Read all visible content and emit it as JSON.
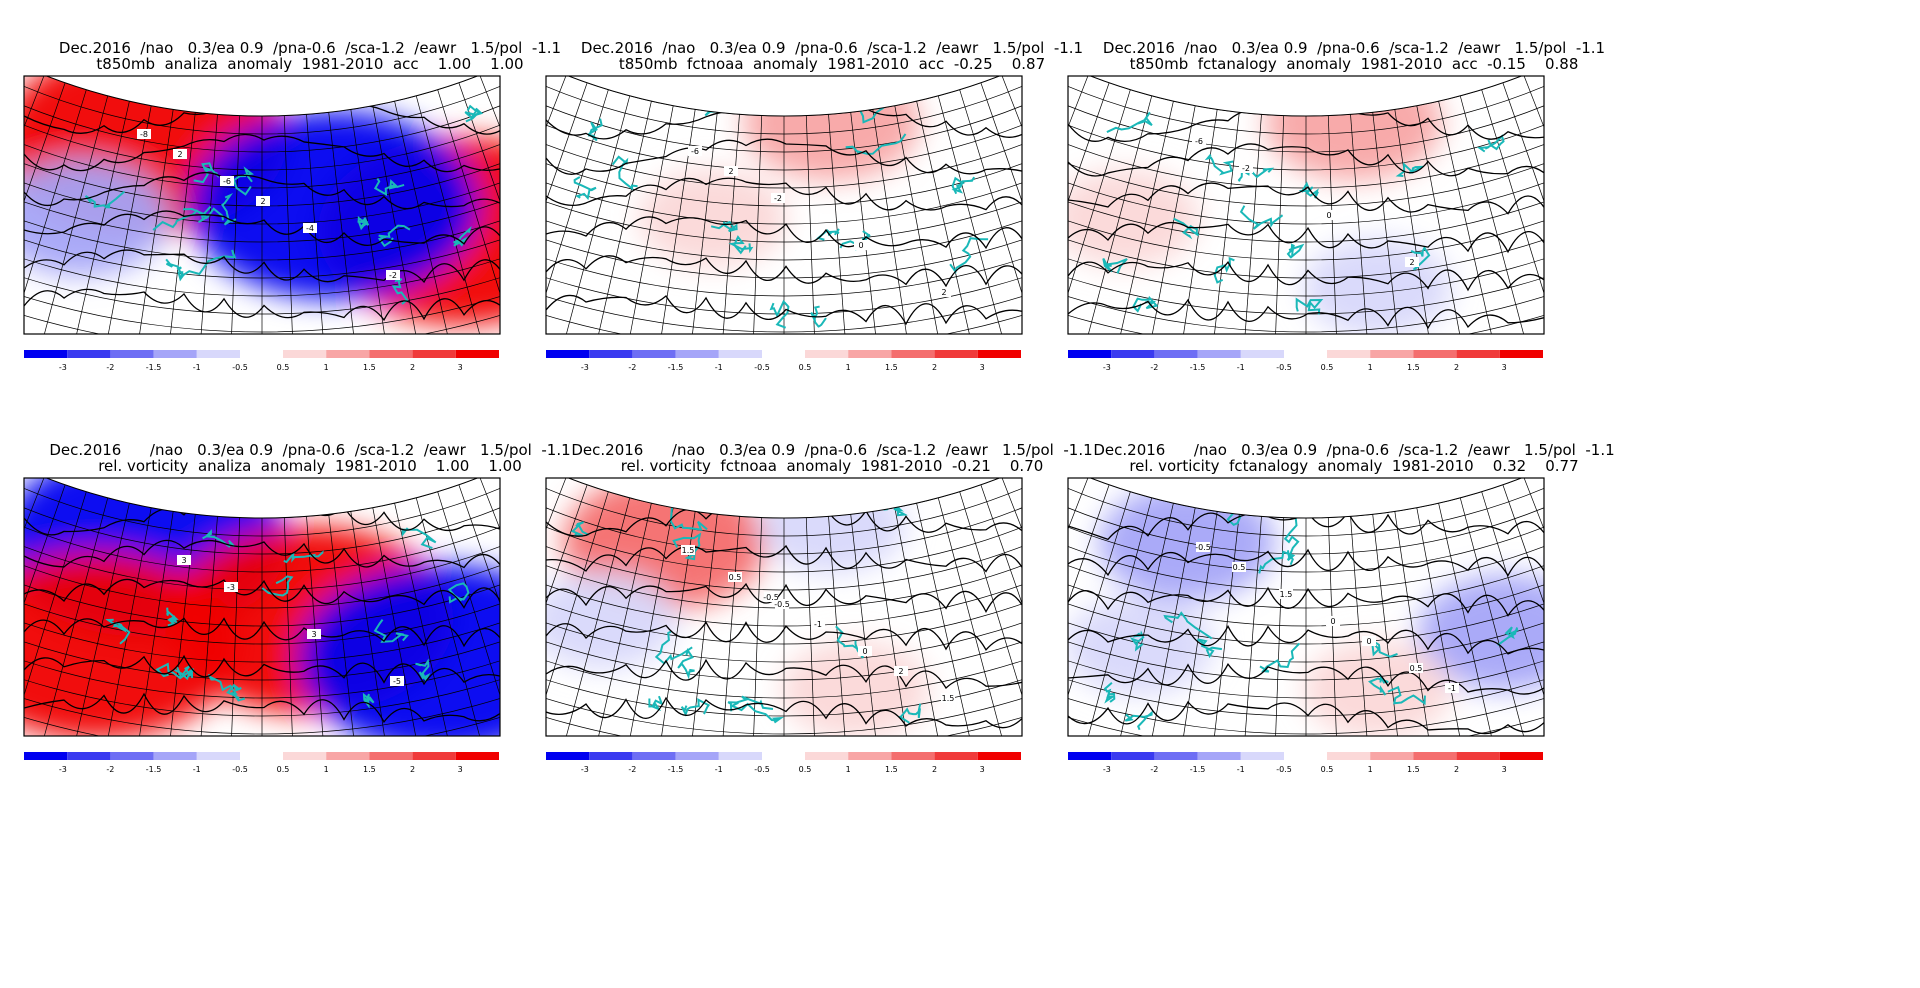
{
  "colors": {
    "negative_strong": "#0000f0",
    "positive_strong": "#f00000",
    "coast": "#1ab8b8",
    "contour": "#000000"
  },
  "colorbar_labels": [
    "-3",
    "-2",
    "-1.5",
    "-1",
    "-0.5",
    "0.5",
    "1",
    "1.5",
    "2",
    "3"
  ],
  "panels": [
    {
      "title_line1": "Dec.2016  /nao   0.3/ea 0.9  /pna-0.6  /sca-1.2  /eawr   1.5/pol  -1.1",
      "title_line2": "t850mb  analiza  anomaly  1981-2010  acc    1.00    1.00"
    },
    {
      "title_line1": "Dec.2016  /nao   0.3/ea 0.9  /pna-0.6  /sca-1.2  /eawr   1.5/pol  -1.1",
      "title_line2": "t850mb  fctnoaa  anomaly  1981-2010  acc  -0.25    0.87"
    },
    {
      "title_line1": "Dec.2016  /nao   0.3/ea 0.9  /pna-0.6  /sca-1.2  /eawr   1.5/pol  -1.1",
      "title_line2": "t850mb  fctanalogy  anomaly  1981-2010  acc  -0.15    0.88"
    },
    {
      "title_line1": "Dec.2016      /nao   0.3/ea 0.9  /pna-0.6  /sca-1.2  /eawr   1.5/pol  -1.1",
      "title_line2": "rel. vorticity  analiza  anomaly  1981-2010    1.00    1.00"
    },
    {
      "title_line1": "Dec.2016      /nao   0.3/ea 0.9  /pna-0.6  /sca-1.2  /eawr   1.5/pol  -1.1",
      "title_line2": "rel. vorticity  fctnoaa  anomaly  1981-2010  -0.21    0.70"
    },
    {
      "title_line1": "Dec.2016      /nao   0.3/ea 0.9  /pna-0.6  /sca-1.2  /eawr   1.5/pol  -1.1",
      "title_line2": "rel. vorticity  fctanalogy  anomaly  1981-2010    0.32    0.77"
    }
  ],
  "chart_data": [
    {
      "type": "heatmap",
      "panel": 1,
      "variable": "t850mb analiza anomaly 1981-2010",
      "colorbar_levels": [
        -3,
        -2,
        -1.5,
        -1,
        -0.5,
        0.5,
        1,
        1.5,
        2,
        3
      ],
      "contour_labels": [
        "-8",
        "-6",
        "-4",
        "-2",
        "2",
        "2"
      ],
      "acc": [
        1.0,
        1.0
      ],
      "anomalies": [
        {
          "kind": "warm",
          "value": 3,
          "region": "north-west"
        },
        {
          "kind": "warm",
          "value": 3,
          "region": "east"
        },
        {
          "kind": "cold",
          "value": -3,
          "region": "north-east to south"
        },
        {
          "kind": "cold",
          "value": -1,
          "region": "west"
        }
      ]
    },
    {
      "type": "heatmap",
      "panel": 2,
      "variable": "t850mb fctnoaa anomaly 1981-2010",
      "colorbar_levels": [
        -3,
        -2,
        -1.5,
        -1,
        -0.5,
        0.5,
        1,
        1.5,
        2,
        3
      ],
      "contour_labels": [
        "-6",
        "-2",
        "0",
        "2",
        "2"
      ],
      "acc": [
        -0.25,
        0.87
      ],
      "anomalies": [
        {
          "kind": "warm",
          "value": 1,
          "region": "north"
        },
        {
          "kind": "warm",
          "value": 0.5,
          "region": "west-centre"
        }
      ]
    },
    {
      "type": "heatmap",
      "panel": 3,
      "variable": "t850mb fctanalogy anomaly 1981-2010",
      "colorbar_levels": [
        -3,
        -2,
        -1.5,
        -1,
        -0.5,
        0.5,
        1,
        1.5,
        2,
        3
      ],
      "contour_labels": [
        "-2",
        "0",
        "2",
        "-6"
      ],
      "acc": [
        -0.15,
        0.88
      ],
      "anomalies": [
        {
          "kind": "warm",
          "value": 1,
          "region": "north"
        },
        {
          "kind": "warm",
          "value": 0.5,
          "region": "west"
        },
        {
          "kind": "cold",
          "value": -0.5,
          "region": "south"
        }
      ]
    },
    {
      "type": "heatmap",
      "panel": 4,
      "variable": "rel. vorticity analiza anomaly 1981-2010",
      "colorbar_levels": [
        -3,
        -2,
        -1.5,
        -1,
        -0.5,
        0.5,
        1,
        1.5,
        2,
        3
      ],
      "contour_labels": [
        "-3",
        "3",
        "-5",
        "3"
      ],
      "acc": [
        1.0,
        1.0
      ],
      "anomalies": [
        {
          "kind": "cold",
          "value": -3,
          "region": "north-west"
        },
        {
          "kind": "warm",
          "value": 3,
          "region": "centre-east"
        },
        {
          "kind": "warm",
          "value": 3,
          "region": "south-west"
        },
        {
          "kind": "cold",
          "value": -3,
          "region": "south-east"
        }
      ]
    },
    {
      "type": "heatmap",
      "panel": 5,
      "variable": "rel. vorticity fctnoaa anomaly 1981-2010",
      "colorbar_levels": [
        -3,
        -2,
        -1.5,
        -1,
        -0.5,
        0.5,
        1,
        1.5,
        2,
        3
      ],
      "contour_labels": [
        "-0.5",
        "0",
        "1.5",
        "0.5",
        "-1",
        "2",
        "1.5",
        "-0.5"
      ],
      "acc": [
        -0.21,
        0.7
      ],
      "anomalies": [
        {
          "kind": "warm",
          "value": 1.5,
          "region": "north-west"
        },
        {
          "kind": "cold",
          "value": -0.5,
          "region": "north"
        },
        {
          "kind": "cold",
          "value": -0.5,
          "region": "west"
        },
        {
          "kind": "warm",
          "value": 0.5,
          "region": "south"
        }
      ]
    },
    {
      "type": "heatmap",
      "panel": 6,
      "variable": "rel. vorticity fctanalogy anomaly 1981-2010",
      "colorbar_levels": [
        -3,
        -2,
        -1.5,
        -1,
        -0.5,
        0.5,
        1,
        1.5,
        2,
        3
      ],
      "contour_labels": [
        "0",
        "0.5",
        "-0.5",
        "1.5",
        "0",
        "-1",
        "0.5"
      ],
      "acc": [
        0.32,
        0.77
      ],
      "anomalies": [
        {
          "kind": "cold",
          "value": -1,
          "region": "north-west"
        },
        {
          "kind": "cold",
          "value": -1,
          "region": "east"
        },
        {
          "kind": "warm",
          "value": 0.5,
          "region": "south"
        },
        {
          "kind": "cold",
          "value": -0.5,
          "region": "south-west"
        }
      ]
    }
  ]
}
